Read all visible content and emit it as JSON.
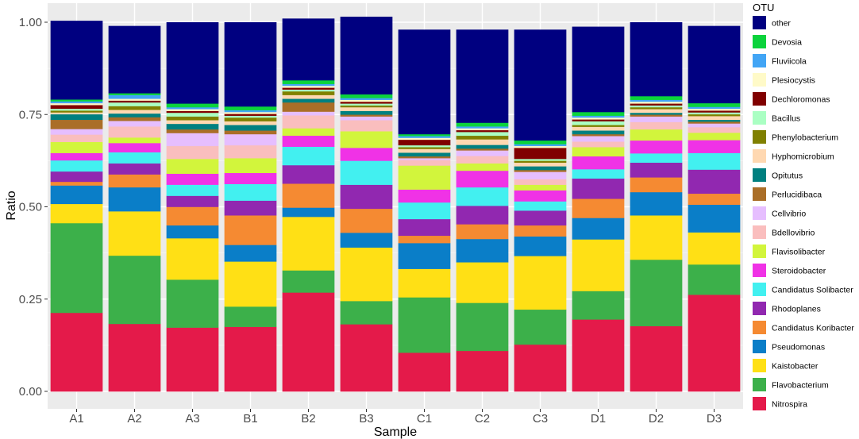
{
  "chart_data": {
    "type": "bar",
    "stacked": true,
    "xlabel": "Sample",
    "ylabel": "Ratio",
    "ylim": [
      0,
      1
    ],
    "y_ticks": [
      "0.00",
      "0.25",
      "0.50",
      "0.75",
      "1.00"
    ],
    "grid": true,
    "legend_title": "OTU",
    "legend_position": "right",
    "categories": [
      "A1",
      "A2",
      "A3",
      "B1",
      "B2",
      "B3",
      "C1",
      "C2",
      "C3",
      "D1",
      "D2",
      "D3"
    ],
    "series": [
      {
        "name": "Nitrospira",
        "color": "#E41A4A",
        "values": [
          0.213,
          0.183,
          0.173,
          0.175,
          0.268,
          0.182,
          0.105,
          0.11,
          0.127,
          0.195,
          0.177,
          0.262
        ]
      },
      {
        "name": "Flavobacterium",
        "color": "#3CB04A",
        "values": [
          0.243,
          0.185,
          0.13,
          0.055,
          0.06,
          0.063,
          0.15,
          0.13,
          0.095,
          0.077,
          0.18,
          0.082
        ]
      },
      {
        "name": "Kaistobacter",
        "color": "#FFE015",
        "values": [
          0.052,
          0.12,
          0.112,
          0.122,
          0.145,
          0.145,
          0.077,
          0.11,
          0.145,
          0.14,
          0.12,
          0.087
        ]
      },
      {
        "name": "Pseudomonas",
        "color": "#0A7EC8",
        "values": [
          0.05,
          0.065,
          0.035,
          0.045,
          0.025,
          0.04,
          0.07,
          0.063,
          0.053,
          0.058,
          0.063,
          0.075
        ]
      },
      {
        "name": "Candidatus Koribacter",
        "color": "#F58A32",
        "values": [
          0.01,
          0.035,
          0.05,
          0.08,
          0.065,
          0.065,
          0.02,
          0.04,
          0.03,
          0.052,
          0.04,
          0.03
        ]
      },
      {
        "name": "Rhodoplanes",
        "color": "#9128B0",
        "values": [
          0.028,
          0.03,
          0.03,
          0.04,
          0.05,
          0.065,
          0.045,
          0.05,
          0.04,
          0.055,
          0.04,
          0.065
        ]
      },
      {
        "name": "Candidatus Solibacter",
        "color": "#42F0F0",
        "values": [
          0.03,
          0.03,
          0.03,
          0.045,
          0.05,
          0.065,
          0.045,
          0.05,
          0.025,
          0.025,
          0.025,
          0.045
        ]
      },
      {
        "name": "Steroidobacter",
        "color": "#F032E6",
        "values": [
          0.02,
          0.025,
          0.03,
          0.03,
          0.03,
          0.035,
          0.035,
          0.045,
          0.03,
          0.035,
          0.035,
          0.035
        ]
      },
      {
        "name": "Flavisolibacter",
        "color": "#D2F53C",
        "values": [
          0.03,
          0.015,
          0.04,
          0.04,
          0.02,
          0.045,
          0.065,
          0.02,
          0.015,
          0.025,
          0.03,
          0.02
        ]
      },
      {
        "name": "Bdellovibrio",
        "color": "#FABEBE",
        "values": [
          0.02,
          0.03,
          0.035,
          0.035,
          0.035,
          0.03,
          0.015,
          0.02,
          0.015,
          0.015,
          0.02,
          0.015
        ]
      },
      {
        "name": "Cellvibrio",
        "color": "#E6BEFF",
        "values": [
          0.015,
          0.015,
          0.035,
          0.03,
          0.01,
          0.01,
          0.005,
          0.015,
          0.02,
          0.015,
          0.015,
          0.01
        ]
      },
      {
        "name": "Perlucidibaca",
        "color": "#AA6E28",
        "values": [
          0.025,
          0.01,
          0.01,
          0.01,
          0.025,
          0.005,
          0.005,
          0.005,
          0.005,
          0.005,
          0.005,
          0.005
        ]
      },
      {
        "name": "Opitutus",
        "color": "#008080",
        "values": [
          0.015,
          0.01,
          0.015,
          0.015,
          0.01,
          0.01,
          0.01,
          0.01,
          0.01,
          0.01,
          0.005,
          0.005
        ]
      },
      {
        "name": "Hyphomicrobium",
        "color": "#FFD8B1",
        "values": [
          0.005,
          0.01,
          0.01,
          0.01,
          0.01,
          0.01,
          0.01,
          0.015,
          0.01,
          0.01,
          0.01,
          0.01
        ]
      },
      {
        "name": "Phenylobacterium",
        "color": "#808000",
        "values": [
          0.005,
          0.01,
          0.01,
          0.01,
          0.01,
          0.005,
          0.005,
          0.01,
          0.005,
          0.005,
          0.005,
          0.005
        ]
      },
      {
        "name": "Bacillus",
        "color": "#AAFFC3",
        "values": [
          0.005,
          0.01,
          0.01,
          0.005,
          0.005,
          0.005,
          0.005,
          0.01,
          0.005,
          0.01,
          0.005,
          0.005
        ]
      },
      {
        "name": "Dechloromonas",
        "color": "#800000",
        "values": [
          0.01,
          0.005,
          0.005,
          0.005,
          0.005,
          0.005,
          0.015,
          0.005,
          0.03,
          0.005,
          0.005,
          0.005
        ]
      },
      {
        "name": "Plesiocystis",
        "color": "#FFFAC8",
        "values": [
          0.005,
          0.005,
          0.005,
          0.005,
          0.005,
          0.005,
          0.005,
          0.005,
          0.005,
          0.005,
          0.005,
          0.005
        ]
      },
      {
        "name": "Fluviicola",
        "color": "#42A5F5",
        "values": [
          0.005,
          0.01,
          0.005,
          0.005,
          0.005,
          0.005,
          0.005,
          0.005,
          0.005,
          0.005,
          0.005,
          0.005
        ]
      },
      {
        "name": "Devosia",
        "color": "#0BD33C",
        "values": [
          0.005,
          0.005,
          0.01,
          0.01,
          0.01,
          0.01,
          0.005,
          0.01,
          0.01,
          0.01,
          0.01,
          0.01
        ]
      },
      {
        "name": "other",
        "color": "#000080",
        "values": [
          0.213,
          0.182,
          0.22,
          0.228,
          0.167,
          0.21,
          0.283,
          0.252,
          0.3,
          0.231,
          0.2,
          0.209
        ]
      }
    ]
  }
}
